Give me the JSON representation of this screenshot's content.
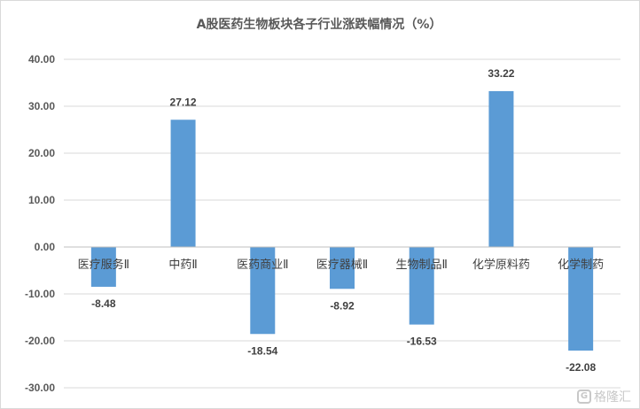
{
  "chart_data": {
    "type": "bar",
    "title": "A股医药生物板块各子行业涨跌幅情况（%）",
    "xlabel": "",
    "ylabel": "",
    "categories": [
      "医疗服务Ⅱ",
      "中药Ⅱ",
      "医药商业Ⅱ",
      "医疗器械Ⅱ",
      "生物制品Ⅱ",
      "化学原料药",
      "化学制药"
    ],
    "values": [
      -8.48,
      27.12,
      -18.54,
      -8.92,
      -16.53,
      33.22,
      -22.08
    ],
    "value_labels": [
      "-8.48",
      "27.12",
      "-18.54",
      "-8.92",
      "-16.53",
      "33.22",
      "-22.08"
    ],
    "yticks": [
      "40.00",
      "30.00",
      "20.00",
      "10.00",
      "0.00",
      "-10.00",
      "-20.00",
      "-30.00"
    ],
    "ytick_values": [
      40,
      30,
      20,
      10,
      0,
      -10,
      -20,
      -30
    ],
    "ylim": [
      -30,
      40
    ],
    "grid": true,
    "legend": "none",
    "bar_color": "#5b9bd5"
  },
  "watermark": {
    "logo": "G",
    "text": "格隆汇"
  }
}
